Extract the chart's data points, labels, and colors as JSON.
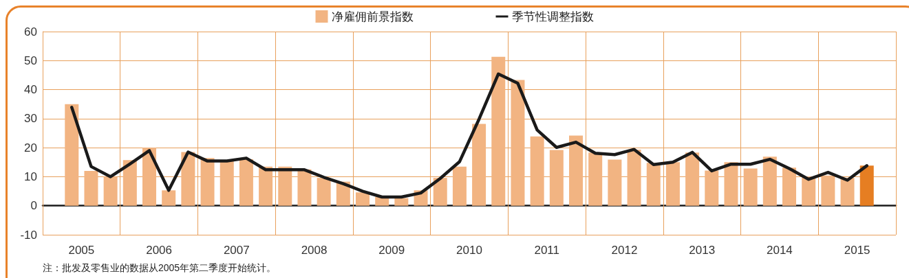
{
  "chart_data": {
    "type": "bar",
    "legend": "top",
    "grid": true,
    "marker": "none",
    "x": [
      2005.375,
      2005.625,
      2005.875,
      2006.125,
      2006.375,
      2006.625,
      2006.875,
      2007.125,
      2007.375,
      2007.625,
      2007.875,
      2008.125,
      2008.375,
      2008.625,
      2008.875,
      2009.125,
      2009.375,
      2009.625,
      2009.875,
      2010.125,
      2010.375,
      2010.625,
      2010.875,
      2011.125,
      2011.375,
      2011.625,
      2011.875,
      2012.125,
      2012.375,
      2012.625,
      2012.875,
      2013.125,
      2013.375,
      2013.625,
      2013.875,
      2014.125,
      2014.375,
      2014.625,
      2014.875,
      2015.125,
      2015.375,
      2015.625
    ],
    "xlim": [
      2005,
      2016
    ],
    "xticks": [
      {
        "value": 2005,
        "label": null
      },
      {
        "value": 2005.5,
        "label": "2005"
      },
      {
        "value": 2006,
        "label": null
      },
      {
        "value": 2006.5,
        "label": "2006"
      },
      {
        "value": 2007,
        "label": null
      },
      {
        "value": 2007.5,
        "label": "2007"
      },
      {
        "value": 2008,
        "label": null
      },
      {
        "value": 2008.5,
        "label": "2008"
      },
      {
        "value": 2009,
        "label": null
      },
      {
        "value": 2009.5,
        "label": "2009"
      },
      {
        "value": 2010,
        "label": null
      },
      {
        "value": 2010.5,
        "label": "2010"
      },
      {
        "value": 2011,
        "label": null
      },
      {
        "value": 2011.5,
        "label": "2011"
      },
      {
        "value": 2012,
        "label": null
      },
      {
        "value": 2012.5,
        "label": "2012"
      },
      {
        "value": 2013,
        "label": null
      },
      {
        "value": 2013.5,
        "label": "2013"
      },
      {
        "value": 2014,
        "label": null
      },
      {
        "value": 2014.5,
        "label": "2014"
      },
      {
        "value": 2015,
        "label": null
      },
      {
        "value": 2015.5,
        "label": "2015"
      },
      {
        "value": 2016,
        "label": null
      }
    ],
    "ylim": [
      -10,
      60
    ],
    "yticks": [
      -10,
      0,
      10,
      20,
      30,
      40,
      50,
      60
    ],
    "annotations": [
      "注：批发及零售业的数据从2005年第二季度开始统计。"
    ],
    "series": [
      {
        "name": "净雇佣前景指数",
        "color": "#f2b482",
        "colors": [
          "#f2b482",
          "#f2b482",
          "#f2b482",
          "#f2b482",
          "#f2b482",
          "#f2b482",
          "#f2b482",
          "#f2b482",
          "#f2b482",
          "#f2b482",
          "#f2b482",
          "#f2b482",
          "#f2b482",
          "#f2b482",
          "#f2b482",
          "#f2b482",
          "#f2b482",
          "#f2b482",
          "#f2b482",
          "#f2b482",
          "#f2b482",
          "#f2b482",
          "#f2b482",
          "#f2b482",
          "#f2b482",
          "#f2b482",
          "#f2b482",
          "#f2b482",
          "#f2b482",
          "#f2b482",
          "#f2b482",
          "#f2b482",
          "#f2b482",
          "#f2b482",
          "#f2b482",
          "#f2b482",
          "#f2b482",
          "#f2b482",
          "#f2b482",
          "#f2b482",
          "#f2b482",
          "#e67e22"
        ],
        "values": [
          35,
          12,
          10,
          15.7,
          20,
          5.3,
          18.5,
          16.4,
          15.4,
          16,
          13.5,
          13.5,
          12.5,
          9.6,
          8.3,
          4.6,
          3,
          2.6,
          5.3,
          9.6,
          13.5,
          28.2,
          51.3,
          43.3,
          23.9,
          19.2,
          24.2,
          18.3,
          15.9,
          19.3,
          14.8,
          15,
          18.3,
          12.1,
          15,
          12.8,
          16.9,
          13.1,
          10.1,
          10.4,
          9.6,
          13.8
        ]
      },
      {
        "name": "季节性调整指数",
        "type": "line",
        "color": "#1a1a1a",
        "values": [
          33.9,
          13.5,
          10,
          14.4,
          19,
          5.3,
          18.5,
          15.4,
          15.4,
          16.4,
          12.4,
          12.4,
          12.4,
          9.8,
          7.6,
          5,
          3,
          3,
          4.4,
          9.4,
          15.2,
          29.8,
          45.4,
          42.2,
          26.1,
          20.1,
          21.9,
          18.1,
          17.6,
          19.4,
          14.2,
          15,
          18.4,
          12,
          14.3,
          14.3,
          16,
          12.8,
          9.1,
          11.5,
          8.8,
          13.8
        ]
      }
    ]
  }
}
